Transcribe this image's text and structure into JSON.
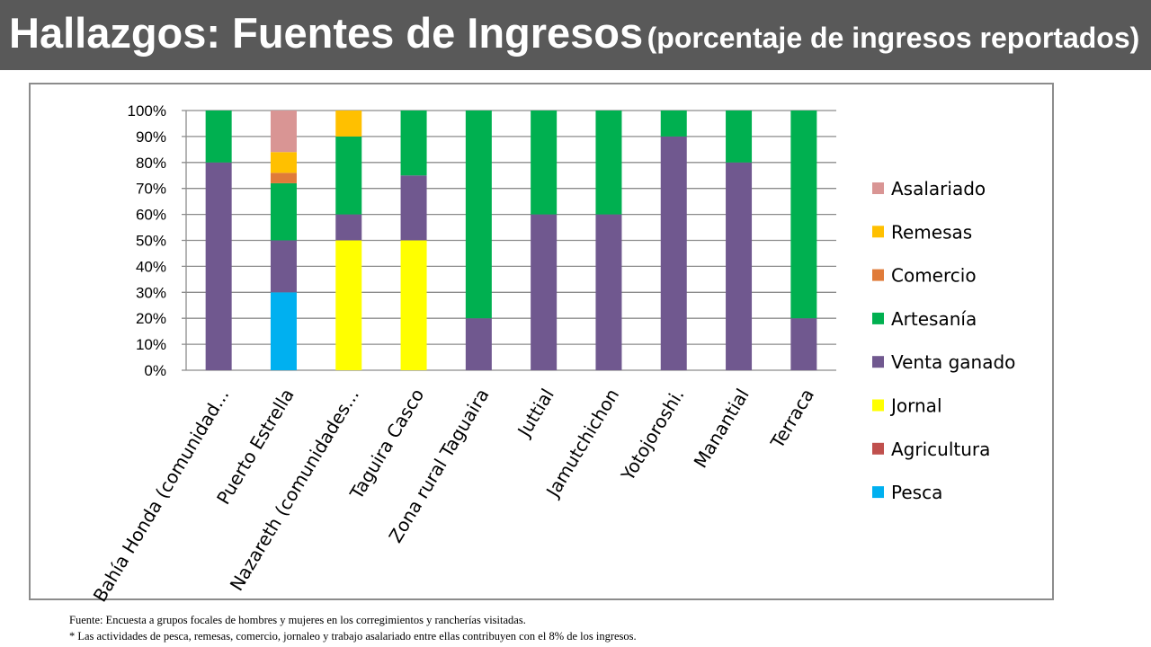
{
  "header": {
    "title_main": "Hallazgos: Fuentes de Ingresos",
    "title_sub": "(porcentaje de ingresos reportados)"
  },
  "chart_data": {
    "type": "bar",
    "stacked": true,
    "categories": [
      "Bahía Honda (comunidad...",
      "Puerto Estrella",
      "Nazareth (comunidades...",
      "Taguira Casco",
      "Zona rural Taguaira",
      "Juttial",
      "Jamutchichon",
      "Yotojoroshi.",
      "Manantial",
      "Terraca"
    ],
    "series": [
      {
        "name": "Pesca",
        "color": "#00b0f0",
        "values": [
          0,
          30,
          0,
          0,
          0,
          0,
          0,
          0,
          0,
          0
        ]
      },
      {
        "name": "Agricultura",
        "color": "#c0504d",
        "values": [
          0,
          0,
          0,
          0,
          0,
          0,
          0,
          0,
          0,
          0
        ]
      },
      {
        "name": "Jornal",
        "color": "#ffff00",
        "values": [
          0,
          0,
          50,
          50,
          0,
          0,
          0,
          0,
          0,
          0
        ]
      },
      {
        "name": "Venta ganado",
        "color": "#70588f",
        "values": [
          80,
          20,
          10,
          25,
          20,
          60,
          60,
          90,
          80,
          20
        ]
      },
      {
        "name": "Artesanía",
        "color": "#00b050",
        "values": [
          20,
          22,
          30,
          25,
          80,
          40,
          40,
          10,
          20,
          80
        ]
      },
      {
        "name": "Comercio",
        "color": "#e07b39",
        "values": [
          0,
          4,
          0,
          0,
          0,
          0,
          0,
          0,
          0,
          0
        ]
      },
      {
        "name": "Remesas",
        "color": "#ffc000",
        "values": [
          0,
          8,
          10,
          0,
          0,
          0,
          0,
          0,
          0,
          0
        ]
      },
      {
        "name": "Asalariado",
        "color": "#d99594",
        "values": [
          0,
          16,
          0,
          0,
          0,
          0,
          0,
          0,
          0,
          0
        ]
      }
    ],
    "legend_order": [
      "Asalariado",
      "Remesas",
      "Comercio",
      "Artesanía",
      "Venta ganado",
      "Jornal",
      "Agricultura",
      "Pesca"
    ],
    "legend_position": "right",
    "y_ticks": [
      "0%",
      "10%",
      "20%",
      "30%",
      "40%",
      "50%",
      "60%",
      "70%",
      "80%",
      "90%",
      "100%"
    ],
    "ylim": [
      0,
      100
    ],
    "grid": true
  },
  "footnotes": {
    "source": "Fuente: Encuesta a grupos focales de hombres y mujeres en los corregimientos y rancherías visitadas.",
    "note": "* Las actividades de pesca, remesas, comercio, jornaleo y trabajo asalariado entre ellas contribuyen con el 8% de los ingresos."
  }
}
